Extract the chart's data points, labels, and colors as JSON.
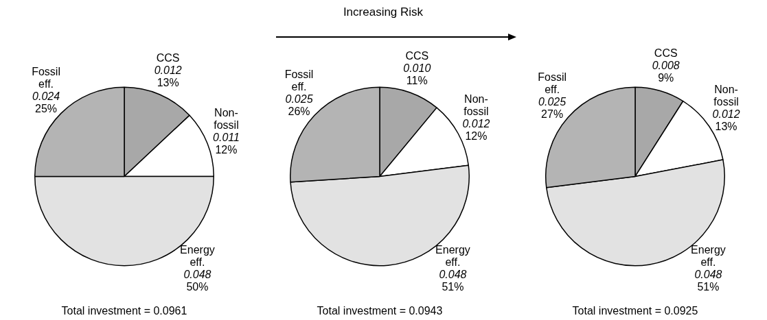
{
  "chart_data": [
    {
      "type": "pie",
      "categories": [
        "CCS",
        "Non-fossil",
        "Energy eff.",
        "Fossil eff."
      ],
      "values": [
        13,
        12,
        50,
        25
      ],
      "value_labels": [
        "13%",
        "12%",
        "50%",
        "25%"
      ],
      "colors": [
        "#a8a8a8",
        "#ffffff",
        "#e2e2e2",
        "#b4b4b4"
      ],
      "annotations": [
        {
          "text": "0.012",
          "x": "CCS"
        },
        {
          "text": "0.011",
          "x": "Non-fossil"
        },
        {
          "text": "0.048",
          "x": "Energy eff."
        },
        {
          "text": "0.024",
          "x": "Fossil eff."
        },
        "Total investment = 0.0961"
      ]
    },
    {
      "type": "pie",
      "title": "Increasing Risk",
      "categories": [
        "CCS",
        "Non-fossil",
        "Energy eff.",
        "Fossil eff."
      ],
      "values": [
        11,
        12,
        51,
        26
      ],
      "value_labels": [
        "11%",
        "12%",
        "51%",
        "26%"
      ],
      "colors": [
        "#a8a8a8",
        "#ffffff",
        "#e2e2e2",
        "#b4b4b4"
      ],
      "annotations": [
        {
          "text": "0.010",
          "x": "CCS"
        },
        {
          "text": "0.012",
          "x": "Non-fossil"
        },
        {
          "text": "0.048",
          "x": "Energy eff."
        },
        {
          "text": "0.025",
          "x": "Fossil eff."
        },
        "Total investment = 0.0943"
      ]
    },
    {
      "type": "pie",
      "categories": [
        "CCS",
        "Non-fossil",
        "Energy eff.",
        "Fossil eff."
      ],
      "values": [
        9,
        13,
        51,
        27
      ],
      "value_labels": [
        "9%",
        "13%",
        "51%",
        "27%"
      ],
      "colors": [
        "#a8a8a8",
        "#ffffff",
        "#e2e2e2",
        "#b4b4b4"
      ],
      "annotations": [
        {
          "text": "0.008",
          "x": "CCS"
        },
        {
          "text": "0.012",
          "x": "Non-fossil"
        },
        {
          "text": "0.048",
          "x": "Energy eff."
        },
        {
          "text": "0.025",
          "x": "Fossil eff."
        },
        "Total investment = 0.0925"
      ]
    }
  ]
}
